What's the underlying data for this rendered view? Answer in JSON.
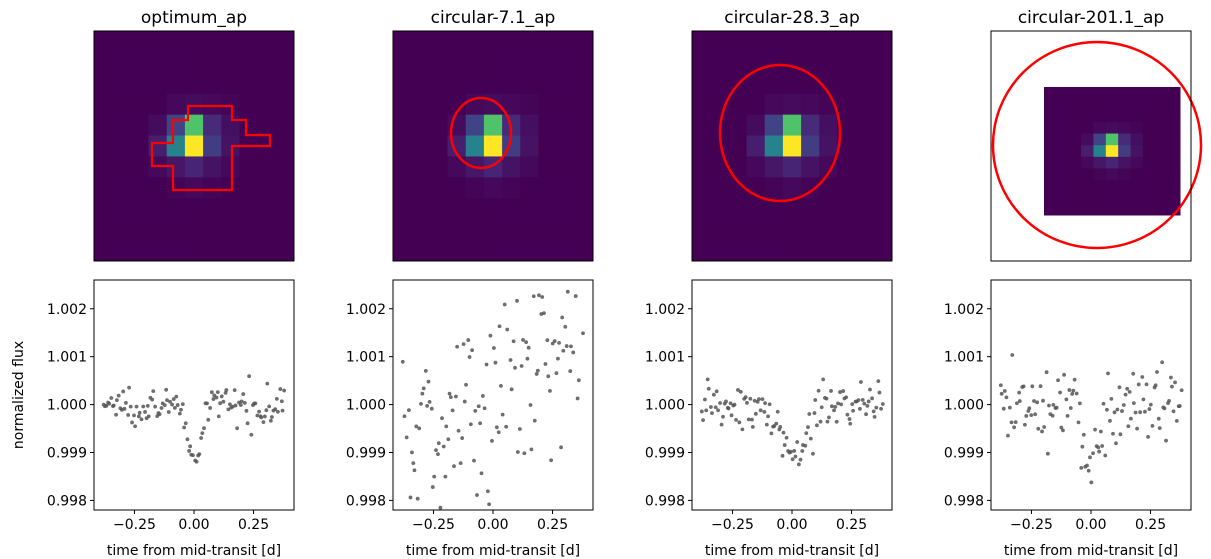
{
  "chart_data": [
    {
      "type": "heatmap",
      "title": "optimum_ap",
      "aperture": "mask",
      "colormap": "viridis",
      "matrix": [
        [
          0,
          0,
          0,
          0,
          0,
          0,
          0,
          0,
          0,
          0,
          0
        ],
        [
          0,
          0,
          0,
          0,
          0,
          0,
          0,
          0,
          0,
          0,
          0
        ],
        [
          0,
          0,
          0,
          0,
          0,
          0,
          0,
          0,
          0,
          0,
          0
        ],
        [
          0,
          0,
          0,
          0,
          0.02,
          0.03,
          0.02,
          0.01,
          0,
          0,
          0
        ],
        [
          0,
          0,
          0,
          0.03,
          0.2,
          0.72,
          0.12,
          0.04,
          0,
          0,
          0
        ],
        [
          0,
          0,
          0,
          0.08,
          0.45,
          1.0,
          0.18,
          0.05,
          0,
          0,
          0
        ],
        [
          0,
          0,
          0,
          0.02,
          0.06,
          0.1,
          0.05,
          0.02,
          0,
          0,
          0
        ],
        [
          0,
          0,
          0,
          0,
          0.01,
          0.02,
          0.01,
          0,
          0,
          0,
          0
        ],
        [
          0,
          0,
          0,
          0,
          0,
          0,
          0,
          0,
          0,
          0,
          0
        ],
        [
          0,
          0,
          0,
          0,
          0,
          0,
          0,
          0,
          0,
          0,
          0
        ],
        [
          0,
          0,
          0,
          0,
          0,
          0,
          0,
          0,
          0,
          0,
          0
        ]
      ]
    },
    {
      "type": "heatmap",
      "title": "circular-7.1_ap",
      "aperture": "circle",
      "aperture_area": 7.1,
      "colormap": "viridis"
    },
    {
      "type": "heatmap",
      "title": "circular-28.3_ap",
      "aperture": "circle",
      "aperture_area": 28.3,
      "colormap": "viridis"
    },
    {
      "type": "heatmap",
      "title": "circular-201.1_ap",
      "aperture": "circle",
      "aperture_area": 201.1,
      "colormap": "viridis",
      "zoomed_out": true
    },
    {
      "type": "scatter",
      "xlabel": "time from mid-transit [d]",
      "ylabel": "normalized flux",
      "xlim": [
        -0.42,
        0.42
      ],
      "ylim": [
        0.9978,
        1.0026
      ],
      "xticks": [
        -0.25,
        0.0,
        0.25
      ],
      "xtick_labels": [
        "−0.25",
        "0.00",
        "0.25"
      ],
      "yticks": [
        0.998,
        0.999,
        1.0,
        1.001,
        1.002
      ],
      "ytick_labels": [
        "0.998",
        "0.999",
        "1.000",
        "1.001",
        "1.002"
      ],
      "noise": 0.00018,
      "transit_depth": 0.0013,
      "transit_halfwidth": 0.045
    },
    {
      "type": "scatter",
      "xlabel": "time from mid-transit [d]",
      "xlim": [
        -0.42,
        0.42
      ],
      "ylim": [
        0.9978,
        1.0026
      ],
      "xticks": [
        -0.25,
        0.0,
        0.25
      ],
      "xtick_labels": [
        "−0.25",
        "0.00",
        "0.25"
      ],
      "yticks": [
        0.998,
        0.999,
        1.0,
        1.001,
        1.002
      ],
      "ytick_labels": [
        "0.998",
        "0.999",
        "1.000",
        "1.001",
        "1.002"
      ],
      "noise": 0.0011,
      "transit_depth": 0.0,
      "trend": 0.0025
    },
    {
      "type": "scatter",
      "xlabel": "time from mid-transit [d]",
      "xlim": [
        -0.42,
        0.42
      ],
      "ylim": [
        0.9978,
        1.0026
      ],
      "xticks": [
        -0.25,
        0.0,
        0.25
      ],
      "xtick_labels": [
        "−0.25",
        "0.00",
        "0.25"
      ],
      "yticks": [
        0.998,
        0.999,
        1.0,
        1.001,
        1.002
      ],
      "ytick_labels": [
        "0.998",
        "0.999",
        "1.000",
        "1.001",
        "1.002"
      ],
      "noise": 0.00025,
      "transit_depth": 0.0011,
      "transit_halfwidth": 0.09
    },
    {
      "type": "scatter",
      "xlabel": "time from mid-transit [d]",
      "xlim": [
        -0.42,
        0.42
      ],
      "ylim": [
        0.9978,
        1.0026
      ],
      "xticks": [
        -0.25,
        0.0,
        0.25
      ],
      "xtick_labels": [
        "−0.25",
        "0.00",
        "0.25"
      ],
      "yticks": [
        0.998,
        0.999,
        1.0,
        1.001,
        1.002
      ],
      "ytick_labels": [
        "0.998",
        "0.999",
        "1.000",
        "1.001",
        "1.002"
      ],
      "noise": 0.0004,
      "transit_depth": 0.0011,
      "transit_halfwidth": 0.06
    }
  ],
  "colors": {
    "aperture": "#ff0000",
    "point": "#555555",
    "frame": "#000000"
  }
}
